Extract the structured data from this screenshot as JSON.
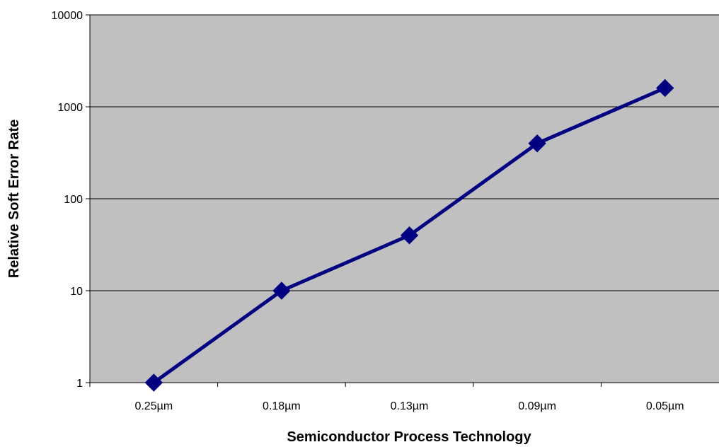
{
  "chart_data": {
    "type": "line",
    "title": "",
    "xlabel": "Semiconductor Process Technology",
    "ylabel": "Relative Soft Error Rate",
    "yscale": "log",
    "ylim": [
      1,
      10000
    ],
    "yticks": [
      "1",
      "10",
      "100",
      "1000",
      "10000"
    ],
    "categories": [
      "0.25µm",
      "0.18µm",
      "0.13µm",
      "0.09µm",
      "0.05µm"
    ],
    "series": [
      {
        "values": [
          1,
          10,
          40,
          400,
          1600
        ],
        "color": "#000080",
        "marker": "diamond"
      }
    ],
    "grid": true,
    "plot_background": "#c0c0c0",
    "legend": "none"
  }
}
